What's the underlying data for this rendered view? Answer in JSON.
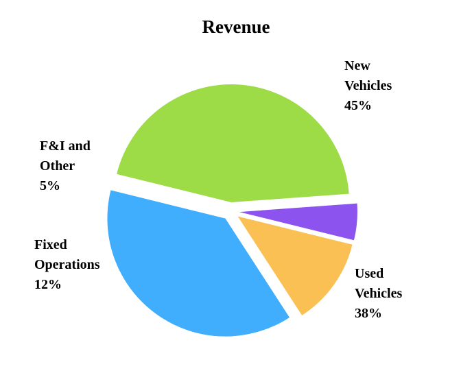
{
  "chart_data": {
    "type": "pie",
    "title": "Revenue",
    "slices": [
      {
        "label_lines": [
          "New",
          "Vehicles"
        ],
        "value": 45,
        "value_label": "45%",
        "color": "#9ddb47"
      },
      {
        "label_lines": [
          "Used",
          "Vehicles"
        ],
        "value": 38,
        "value_label": "38%",
        "color": "#40aefc"
      },
      {
        "label_lines": [
          "Fixed",
          "Operations"
        ],
        "value": 12,
        "value_label": "12%",
        "color": "#fbc054"
      },
      {
        "label_lines": [
          "F&I and",
          "Other"
        ],
        "value": 5,
        "value_label": "5%",
        "color": "#8c53ef"
      }
    ],
    "legend": "none"
  }
}
